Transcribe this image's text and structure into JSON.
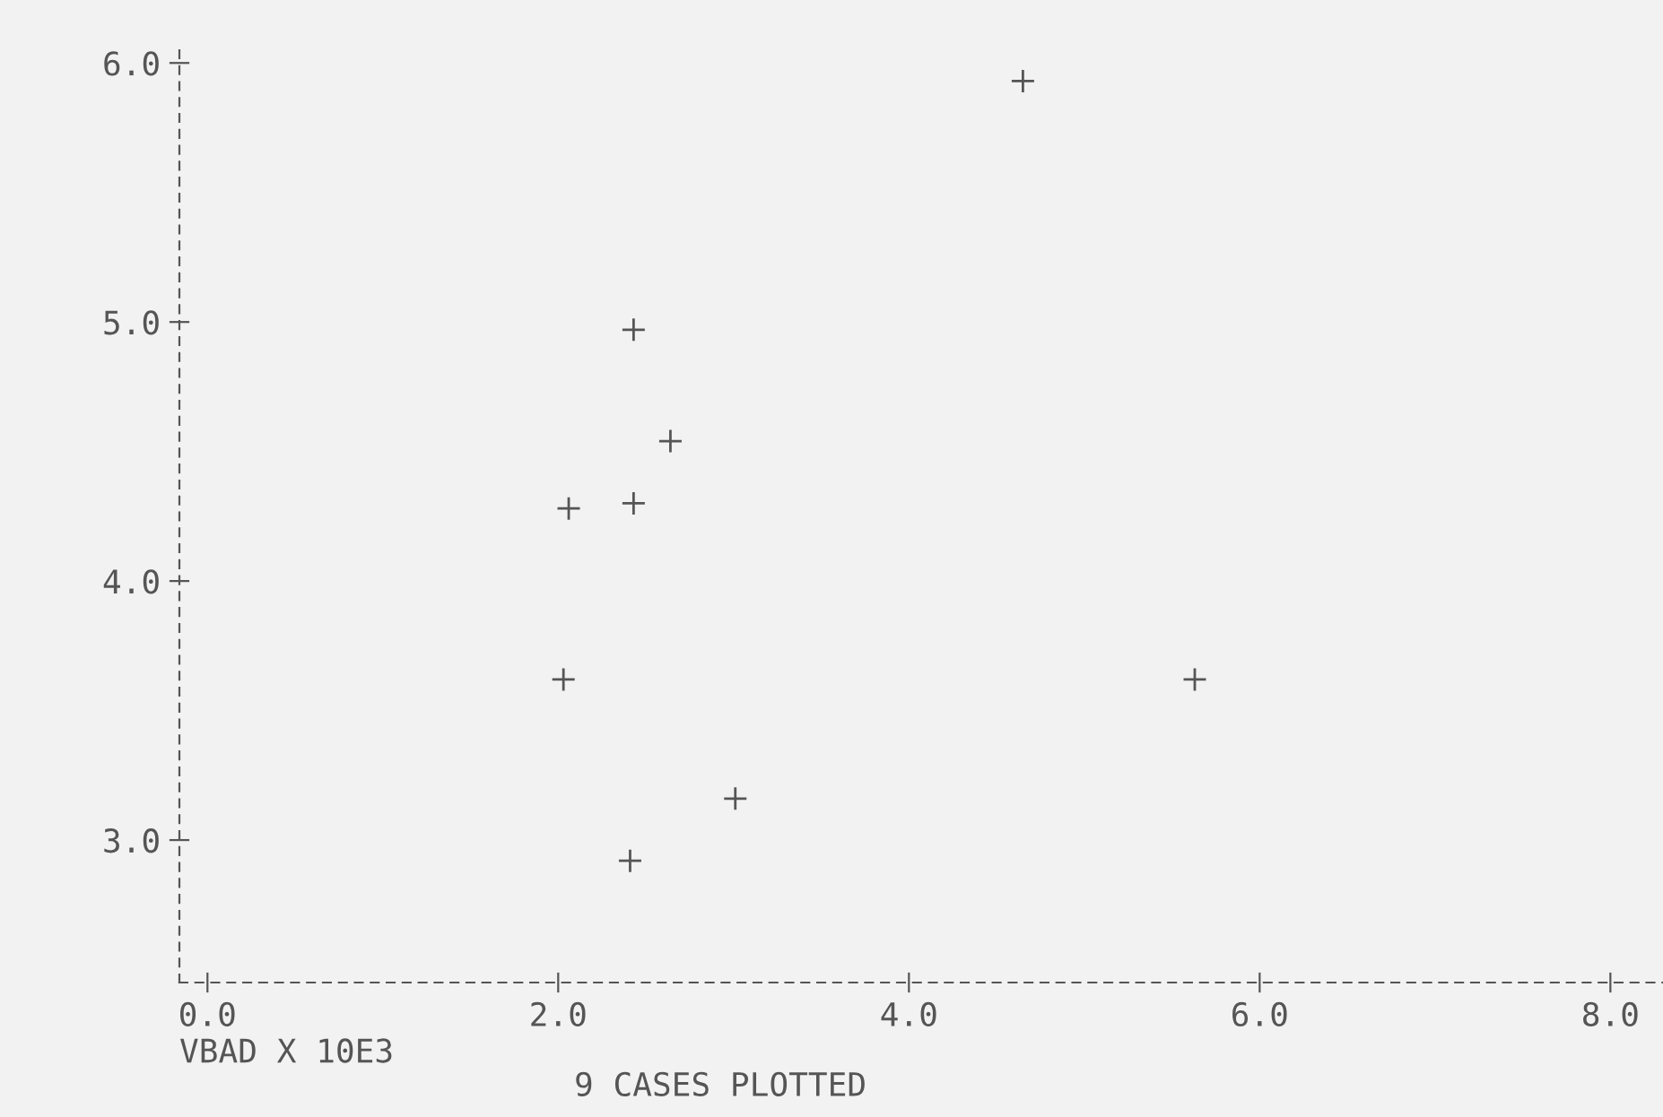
{
  "chart_data": {
    "type": "scatter",
    "xlabel": "VBAD X 10E3",
    "annotations": [
      "9 CASES PLOTTED"
    ],
    "x": [
      4.65,
      2.43,
      2.64,
      2.06,
      2.43,
      2.03,
      5.63,
      3.01,
      2.41
    ],
    "values": [
      5.93,
      4.97,
      4.54,
      4.28,
      4.3,
      3.62,
      3.62,
      3.16,
      2.92
    ],
    "color": "#555555",
    "marker": "cross",
    "grid": false,
    "xlim": [
      -0.16,
      8.3
    ],
    "ylim": [
      2.45,
      6.07
    ],
    "xticks": [
      {
        "value": 0,
        "label": "0.0"
      },
      {
        "value": 2,
        "label": "2.0"
      },
      {
        "value": 4,
        "label": "4.0"
      },
      {
        "value": 6,
        "label": "6.0"
      },
      {
        "value": 8,
        "label": "8.0"
      }
    ],
    "yticks": [
      {
        "value": 3,
        "label": "3.0"
      },
      {
        "value": 4,
        "label": "4.0"
      },
      {
        "value": 5,
        "label": "5.0"
      },
      {
        "value": 6,
        "label": "6.0"
      }
    ]
  }
}
